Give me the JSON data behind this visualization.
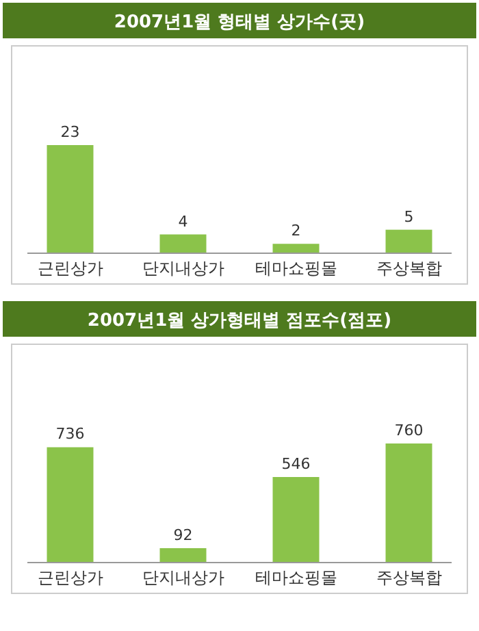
{
  "chart_data": [
    {
      "type": "bar",
      "title": "2007년1월 형태별 상가수(곳)",
      "categories": [
        "근린상가",
        "단지내상가",
        "테마쇼핑몰",
        "주상복합"
      ],
      "values": [
        23,
        4,
        2,
        5
      ],
      "color": "#8bc34a",
      "data_labels": true
    },
    {
      "type": "bar",
      "title": "2007년1월 상가형태별 점포수(점포)",
      "categories": [
        "근린상가",
        "단지내상가",
        "테마쇼핑몰",
        "주상복합"
      ],
      "values": [
        736,
        92,
        546,
        760
      ],
      "color": "#8bc34a",
      "data_labels": true
    }
  ]
}
